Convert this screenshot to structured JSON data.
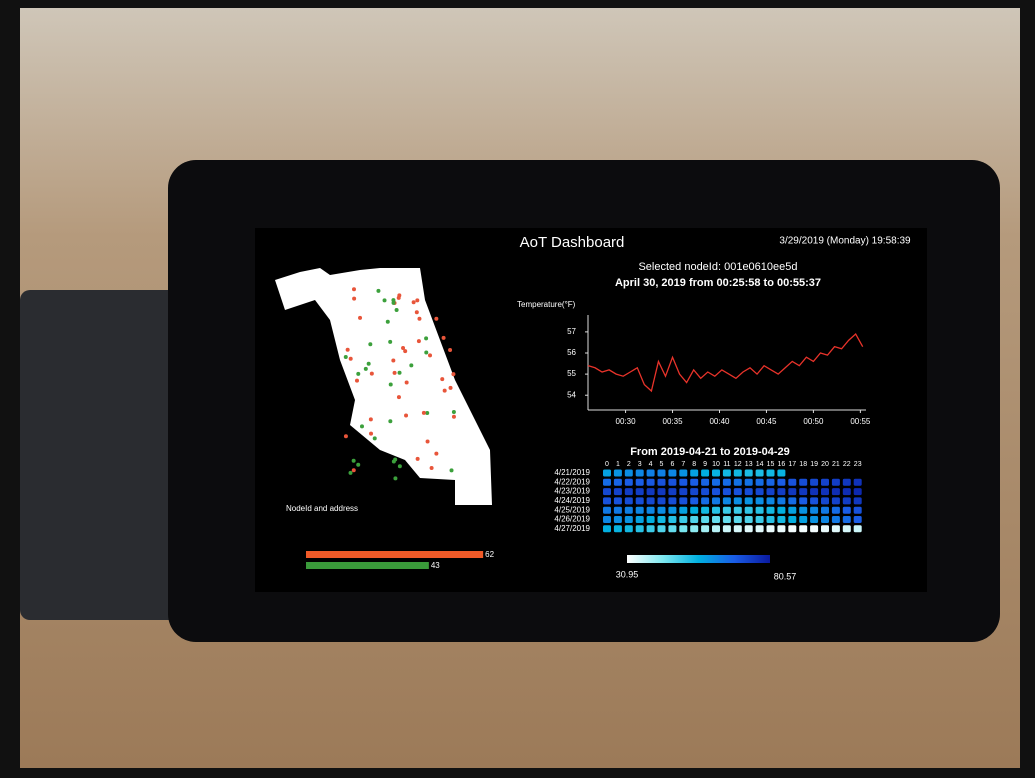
{
  "header": {
    "title": "AoT Dashboard",
    "datetime": "3/29/2019 (Monday) 19:58:39"
  },
  "detail": {
    "selected": "Selected nodeId: 001e0610ee5d",
    "range": "April 30, 2019 from 00:25:58 to 00:55:37"
  },
  "map": {
    "caption": "NodeId and address"
  },
  "chart_data": [
    {
      "type": "line",
      "y_label": "Temperature(°F)",
      "color": "#e8332a",
      "x": [
        26,
        26.75,
        27.5,
        28.25,
        29,
        29.75,
        30.5,
        31.25,
        32,
        32.75,
        33.5,
        34.25,
        35,
        35.75,
        36.5,
        37.25,
        38,
        38.75,
        39.5,
        40.25,
        41,
        41.75,
        42.5,
        43.25,
        44,
        44.75,
        45.5,
        46.25,
        47,
        47.75,
        48.5,
        49.25,
        50,
        50.75,
        51.5,
        52.25,
        53,
        53.75,
        54.5,
        55.25
      ],
      "values": [
        55.4,
        55.3,
        55.1,
        55.2,
        55.0,
        54.9,
        55.1,
        55.3,
        54.5,
        54.2,
        55.6,
        54.9,
        55.8,
        55.0,
        54.6,
        55.2,
        54.8,
        55.1,
        54.9,
        55.2,
        55.0,
        54.8,
        55.1,
        55.3,
        55.0,
        55.4,
        55.2,
        55.0,
        55.3,
        55.6,
        55.4,
        55.8,
        55.6,
        56.0,
        55.9,
        56.3,
        56.2,
        56.6,
        56.9,
        56.3
      ],
      "xlim": [
        26,
        55.6
      ],
      "ylim": [
        53.3,
        57.8
      ],
      "xticks": [
        {
          "value": 30,
          "label": "00:30"
        },
        {
          "value": 35,
          "label": "00:35"
        },
        {
          "value": 40,
          "label": "00:40"
        },
        {
          "value": 45,
          "label": "00:45"
        },
        {
          "value": 50,
          "label": "00:50"
        },
        {
          "value": 55,
          "label": "00:55"
        }
      ],
      "yticks": [
        54,
        55,
        56,
        57
      ]
    },
    {
      "type": "heatmap",
      "title": "From 2019-04-21 to 2019-04-29",
      "hours": [
        0,
        1,
        2,
        3,
        4,
        5,
        6,
        7,
        8,
        9,
        10,
        11,
        12,
        13,
        14,
        15,
        16,
        17,
        18,
        19,
        20,
        21,
        22,
        23
      ],
      "categories": [
        "4/21/2019",
        "4/22/2019",
        "4/23/2019",
        "4/24/2019",
        "4/25/2019",
        "4/26/2019",
        "4/27/2019"
      ],
      "values": [
        [
          58,
          60,
          61,
          62,
          63,
          63,
          62,
          60,
          58,
          56,
          55,
          54,
          54,
          53,
          53,
          54,
          55,
          null,
          null,
          null,
          null,
          null,
          null,
          null
        ],
        [
          66,
          67,
          68,
          68,
          69,
          70,
          70,
          69,
          68,
          67,
          66,
          66,
          65,
          65,
          66,
          67,
          68,
          70,
          71,
          72,
          73,
          74,
          75,
          76
        ],
        [
          72,
          73,
          74,
          74,
          75,
          75,
          74,
          73,
          72,
          71,
          70,
          70,
          70,
          71,
          72,
          73,
          74,
          75,
          75,
          76,
          76,
          77,
          77,
          78
        ],
        [
          70,
          70,
          71,
          71,
          72,
          72,
          71,
          70,
          68,
          66,
          64,
          62,
          61,
          60,
          61,
          62,
          64,
          66,
          68,
          70,
          72,
          73,
          74,
          75
        ],
        [
          64,
          64,
          63,
          62,
          62,
          61,
          60,
          58,
          56,
          54,
          52,
          50,
          50,
          51,
          52,
          54,
          56,
          58,
          60,
          62,
          64,
          66,
          68,
          70
        ],
        [
          62,
          61,
          60,
          58,
          56,
          54,
          52,
          50,
          48,
          47,
          46,
          46,
          47,
          48,
          50,
          52,
          54,
          56,
          58,
          60,
          62,
          64,
          66,
          68
        ],
        [
          56,
          55,
          54,
          52,
          50,
          48,
          46,
          44,
          42,
          40,
          38,
          36,
          35,
          34,
          34,
          33,
          33,
          32,
          32,
          32,
          33,
          34,
          35,
          36
        ]
      ],
      "colorscale": {
        "min": 30.95,
        "max": 80.57
      }
    },
    {
      "type": "bar",
      "orientation": "horizontal",
      "values": [
        62,
        43
      ],
      "colors": [
        "#f05a28",
        "#3a9a3a"
      ],
      "xlim": [
        0,
        70
      ]
    }
  ]
}
